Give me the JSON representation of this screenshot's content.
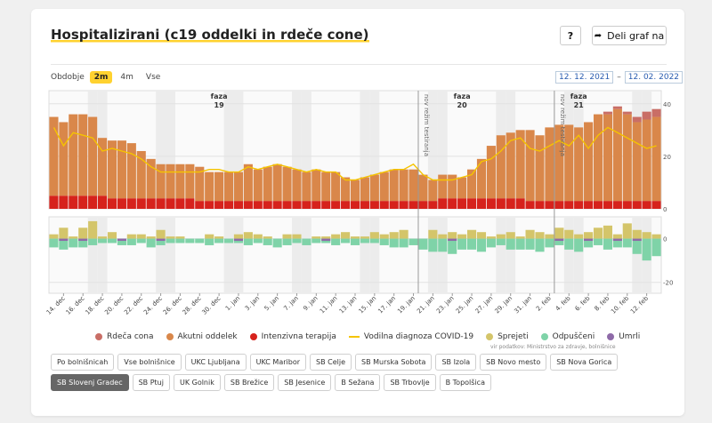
{
  "title": "Hospitalizirani (c19 oddelki in rdeče cone)",
  "help_label": "?",
  "share_label": "Deli graf na",
  "period": {
    "label": "Obdobje",
    "options": [
      "2m",
      "4m",
      "Vse"
    ],
    "selected": "2m"
  },
  "dates": {
    "from": "12. 12. 2021",
    "to": "12. 02. 2022",
    "sep": "–"
  },
  "source": "vir podatkov: Ministrstvo za zdravje, bolnišnice",
  "legend": [
    {
      "label": "Rdeča cona",
      "color": "#c96e66",
      "kind": "dot"
    },
    {
      "label": "Akutni oddelek",
      "color": "#d9874a",
      "kind": "dot"
    },
    {
      "label": "Intenzivna terapija",
      "color": "#d6221c",
      "kind": "dot"
    },
    {
      "label": "Vodilna diagnoza COVID-19",
      "color": "#f5c400",
      "kind": "line"
    },
    {
      "label": "Sprejeti",
      "color": "#d4c56a",
      "kind": "dot"
    },
    {
      "label": "Odpuščeni",
      "color": "#7fd3a8",
      "kind": "dot"
    },
    {
      "label": "Umrli",
      "color": "#8e6aa8",
      "kind": "dot"
    }
  ],
  "hospitals": [
    {
      "label": "Po bolnišnicah",
      "active": false
    },
    {
      "label": "Vse bolnišnice",
      "active": false
    },
    {
      "label": "UKC Ljubljana",
      "active": false
    },
    {
      "label": "UKC Maribor",
      "active": false
    },
    {
      "label": "SB Celje",
      "active": false
    },
    {
      "label": "SB Murska Sobota",
      "active": false
    },
    {
      "label": "SB Izola",
      "active": false
    },
    {
      "label": "SB Novo mesto",
      "active": false
    },
    {
      "label": "SB Nova Gorica",
      "active": false
    },
    {
      "label": "SB Slovenj Gradec",
      "active": true
    },
    {
      "label": "SB Ptuj",
      "active": false
    },
    {
      "label": "UK Golnik",
      "active": false
    },
    {
      "label": "SB Brežice",
      "active": false
    },
    {
      "label": "SB Jesenice",
      "active": false
    },
    {
      "label": "B Sežana",
      "active": false
    },
    {
      "label": "SB Trbovlje",
      "active": false
    },
    {
      "label": "B Topolšica",
      "active": false
    }
  ],
  "chart_data": {
    "type": "bar",
    "x_tick_labels": [
      "14. dec",
      "16. dec",
      "18. dec",
      "20. dec",
      "22. dec",
      "24. dec",
      "26. dec",
      "28. dec",
      "30. dec",
      "1. jan",
      "3. jan",
      "5. jan",
      "7. jan",
      "9. jan",
      "11. jan",
      "13. jan",
      "15. jan",
      "17. jan",
      "19. jan",
      "21. jan",
      "23. jan",
      "25. jan",
      "27. jan",
      "29. jan",
      "31. jan",
      "2. feb",
      "4. feb",
      "6. feb",
      "8. feb",
      "10. feb",
      "12. feb"
    ],
    "phases": [
      {
        "label": "faza",
        "num": "19"
      },
      {
        "label": "faza",
        "num": "20"
      },
      {
        "label": "faza",
        "num": "21"
      }
    ],
    "annotations": [
      "nov režim testiranja",
      "nov režim testiranja"
    ],
    "top": {
      "ylim": [
        0,
        45
      ],
      "yticks": [
        0,
        20,
        40
      ],
      "series": [
        {
          "name": "Intenzivna terapija",
          "values": [
            5,
            5,
            5,
            5,
            5,
            5,
            4,
            4,
            4,
            4,
            4,
            4,
            4,
            4,
            4,
            3,
            3,
            3,
            3,
            3,
            3,
            3,
            3,
            3,
            3,
            3,
            3,
            3,
            3,
            3,
            3,
            3,
            3,
            3,
            3,
            3,
            3,
            3,
            3,
            3,
            4,
            4,
            4,
            4,
            4,
            4,
            4,
            4,
            4,
            3,
            3,
            3,
            3,
            3,
            3,
            3,
            3,
            3,
            3,
            3,
            3,
            3,
            3
          ]
        },
        {
          "name": "Akutni oddelek",
          "values": [
            30,
            28,
            31,
            31,
            30,
            22,
            22,
            22,
            21,
            18,
            15,
            13,
            13,
            13,
            13,
            13,
            11,
            11,
            11,
            11,
            14,
            12,
            13,
            14,
            13,
            12,
            11,
            12,
            11,
            11,
            9,
            8,
            9,
            10,
            11,
            12,
            12,
            12,
            10,
            8,
            9,
            9,
            8,
            11,
            15,
            20,
            24,
            25,
            26,
            27,
            25,
            28,
            29,
            29,
            28,
            30,
            33,
            33,
            35,
            33,
            30,
            31,
            32
          ]
        },
        {
          "name": "Rdeča cona",
          "values": [
            0,
            0,
            0,
            0,
            0,
            0,
            0,
            0,
            0,
            0,
            0,
            0,
            0,
            0,
            0,
            0,
            0,
            0,
            0,
            0,
            0,
            0,
            0,
            0,
            0,
            0,
            0,
            0,
            0,
            0,
            0,
            0,
            0,
            0,
            0,
            0,
            0,
            0,
            0,
            0,
            0,
            0,
            0,
            0,
            0,
            0,
            0,
            0,
            0,
            0,
            0,
            0,
            0,
            0,
            0,
            0,
            0,
            1,
            1,
            1,
            2,
            3,
            3
          ]
        },
        {
          "name": "Vodilna diagnoza COVID-19",
          "values": [
            31,
            24,
            29,
            28,
            27,
            22,
            23,
            22,
            21,
            19,
            16,
            14,
            14,
            14,
            14,
            14,
            15,
            15,
            14,
            14,
            16,
            15,
            16,
            17,
            16,
            15,
            14,
            15,
            14,
            14,
            11,
            11,
            12,
            13,
            14,
            15,
            15,
            17,
            13,
            11,
            11,
            11,
            12,
            13,
            18,
            19,
            22,
            26,
            27,
            23,
            22,
            24,
            26,
            24,
            28,
            23,
            28,
            31,
            29,
            27,
            25,
            23,
            24
          ]
        }
      ]
    },
    "bottom": {
      "ylim": [
        -25,
        10
      ],
      "yticks": [
        -20,
        0
      ],
      "series": [
        {
          "name": "Sprejeti",
          "values": [
            2,
            5,
            1,
            5,
            8,
            1,
            3,
            0,
            2,
            2,
            1,
            4,
            1,
            1,
            0,
            0,
            2,
            1,
            0,
            2,
            3,
            2,
            1,
            0,
            2,
            2,
            0,
            1,
            1,
            2,
            3,
            1,
            1,
            3,
            2,
            3,
            4,
            0,
            0,
            4,
            2,
            3,
            2,
            4,
            3,
            1,
            2,
            3,
            1,
            4,
            3,
            2,
            5,
            4,
            2,
            3,
            5,
            6,
            2,
            7,
            4,
            3,
            2
          ]
        },
        {
          "name": "Odpuščeni",
          "values": [
            -4,
            -5,
            -4,
            -4,
            -3,
            -2,
            -2,
            -3,
            -3,
            -2,
            -4,
            -3,
            -2,
            -2,
            -2,
            -2,
            -3,
            -2,
            -2,
            -2,
            -3,
            -2,
            -3,
            -4,
            -3,
            -2,
            -3,
            -2,
            -2,
            -3,
            -2,
            -3,
            -2,
            -2,
            -3,
            -4,
            -4,
            -3,
            -5,
            -6,
            -6,
            -7,
            -5,
            -5,
            -6,
            -4,
            -3,
            -5,
            -5,
            -5,
            -6,
            -4,
            -3,
            -5,
            -6,
            -4,
            -3,
            -5,
            -4,
            -4,
            -7,
            -10,
            -8
          ]
        },
        {
          "name": "Umrli",
          "values": [
            0,
            -1,
            0,
            -1,
            0,
            0,
            0,
            -1,
            0,
            0,
            0,
            -1,
            0,
            0,
            0,
            0,
            0,
            0,
            0,
            -1,
            0,
            0,
            0,
            0,
            0,
            0,
            0,
            0,
            -1,
            0,
            0,
            0,
            0,
            0,
            0,
            0,
            0,
            0,
            0,
            0,
            0,
            -1,
            0,
            0,
            0,
            0,
            0,
            0,
            0,
            0,
            0,
            0,
            -1,
            0,
            0,
            -1,
            0,
            0,
            -1,
            0,
            -1,
            0,
            0
          ]
        }
      ]
    }
  }
}
